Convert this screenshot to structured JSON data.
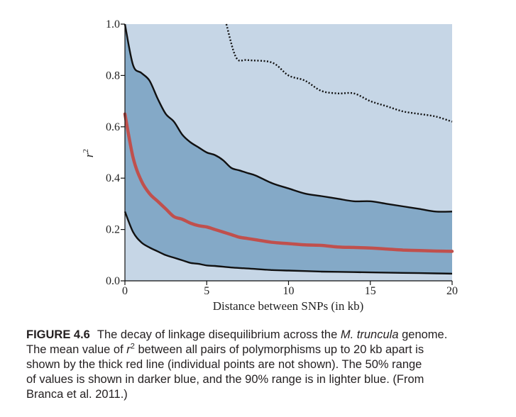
{
  "chart_data": {
    "type": "area",
    "xlabel": "Distance between SNPs (in kb)",
    "ylabel": "r",
    "ylabel_sup": "2",
    "xlim": [
      0,
      20
    ],
    "ylim": [
      0,
      1.0
    ],
    "xticks": [
      "0",
      "5",
      "10",
      "15",
      "20"
    ],
    "yticks": [
      "0.0",
      "0.2",
      "0.4",
      "0.6",
      "0.8",
      "1.0"
    ],
    "grid": false,
    "x": [
      0,
      0.5,
      1,
      1.5,
      2,
      2.5,
      3,
      3.5,
      4,
      4.5,
      5,
      5.5,
      6,
      6.5,
      7,
      7.5,
      8,
      9,
      10,
      11,
      12,
      13,
      14,
      15,
      16,
      17,
      18,
      19,
      20
    ],
    "series": [
      {
        "role": "90% range upper",
        "x": [
          6.2,
          6.8,
          7.5,
          9,
          10,
          11,
          12,
          13,
          14,
          15,
          16,
          17,
          18,
          19,
          20
        ],
        "values": [
          1.0,
          0.87,
          0.86,
          0.85,
          0.8,
          0.78,
          0.74,
          0.73,
          0.73,
          0.7,
          0.68,
          0.66,
          0.65,
          0.64,
          0.62
        ]
      },
      {
        "role": "50% range upper",
        "values": [
          1.0,
          0.84,
          0.81,
          0.78,
          0.71,
          0.65,
          0.62,
          0.57,
          0.54,
          0.52,
          0.5,
          0.49,
          0.47,
          0.44,
          0.43,
          0.42,
          0.41,
          0.38,
          0.36,
          0.34,
          0.33,
          0.32,
          0.31,
          0.31,
          0.3,
          0.29,
          0.28,
          0.27,
          0.27
        ]
      },
      {
        "role": "mean",
        "values": [
          0.65,
          0.48,
          0.39,
          0.34,
          0.31,
          0.28,
          0.25,
          0.24,
          0.225,
          0.215,
          0.21,
          0.2,
          0.19,
          0.18,
          0.17,
          0.165,
          0.16,
          0.15,
          0.145,
          0.14,
          0.138,
          0.132,
          0.13,
          0.128,
          0.124,
          0.12,
          0.118,
          0.116,
          0.115
        ]
      },
      {
        "role": "50% range lower",
        "values": [
          0.27,
          0.19,
          0.15,
          0.13,
          0.115,
          0.1,
          0.09,
          0.08,
          0.07,
          0.066,
          0.06,
          0.058,
          0.055,
          0.052,
          0.05,
          0.048,
          0.046,
          0.042,
          0.04,
          0.038,
          0.036,
          0.035,
          0.034,
          0.033,
          0.032,
          0.031,
          0.03,
          0.029,
          0.028
        ]
      }
    ],
    "colors": {
      "outer_band": "#c6d6e6",
      "inner_band": "#84a9c7",
      "mean_line": "#c0504d",
      "boundary_line": "#111111"
    }
  },
  "caption": {
    "figure_label": "FIGURE 4.6",
    "line1_a": "The decay of linkage disequilibrium across the ",
    "line1_species_genus": "M.",
    "line1_species": " truncu­lata",
    "line1_b": " genome.",
    "line2_a": "The mean value of ",
    "line2_r": "r",
    "line2_sup": "2",
    "line2_b": " between all pairs of polymorphisms up to 20 kb apart is",
    "line3": "shown by the thick red line (individual points are not shown). The 50% range",
    "line4": "of values is shown in darker blue, and the 90% range is in lighter blue. (From",
    "line5": "Branca et al. 2011.)"
  }
}
